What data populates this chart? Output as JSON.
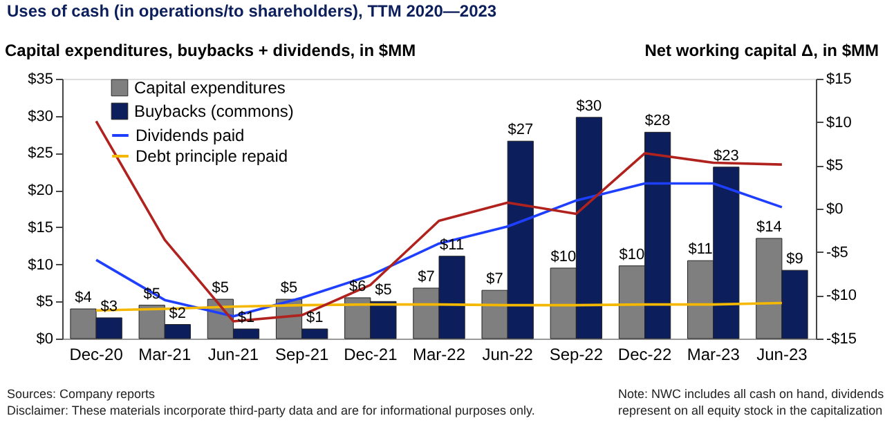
{
  "chart_data": {
    "type": "bar",
    "title": "Uses of cash (in operations/to shareholders), TTM 2020—2023",
    "ylabel": "Capital expenditures, buybacks + dividends, in $MM",
    "y2label": "Net working capital Δ, in $MM",
    "categories": [
      "Dec-20",
      "Mar-21",
      "Jun-21",
      "Sep-21",
      "Dec-21",
      "Mar-22",
      "Jun-22",
      "Sep-22",
      "Dec-22",
      "Mar-23",
      "Jun-23"
    ],
    "series": [
      {
        "name": "Capital expenditures",
        "color": "#7f7f7f",
        "values": [
          4.0,
          4.5,
          5.3,
          5.3,
          5.5,
          6.8,
          6.5,
          9.5,
          9.8,
          10.5,
          13.5
        ],
        "value_labels": [
          "$4",
          "$5",
          "$5",
          "$5",
          "$6",
          "$7",
          "$7",
          "$10",
          "$10",
          "$11",
          "$14"
        ]
      },
      {
        "name": "Buybacks (commons)",
        "color": "#0c1f5c",
        "values": [
          2.8,
          1.9,
          1.3,
          1.3,
          5.0,
          11.1,
          26.6,
          29.8,
          27.8,
          23.1,
          9.2
        ],
        "value_labels": [
          "$3",
          "$2",
          "$1",
          "$1",
          "$5",
          "$11",
          "$27",
          "$30",
          "$28",
          "$23",
          "$9"
        ]
      },
      {
        "name": "Dividends paid",
        "type": "line",
        "color": "#1f3fff",
        "values": [
          10.6,
          5.2,
          3.0,
          5.5,
          8.5,
          12.8,
          15.1,
          18.6,
          20.9,
          20.9,
          17.7
        ]
      },
      {
        "name": "Debt principle repaid",
        "type": "line",
        "color": "#f5b800",
        "values": [
          3.8,
          4.0,
          4.3,
          4.5,
          4.6,
          4.6,
          4.5,
          4.5,
          4.6,
          4.6,
          4.8
        ]
      },
      {
        "type": "line",
        "axis": "y2",
        "color": "#b0221e",
        "values": [
          10.1,
          -3.6,
          -13.0,
          -12.3,
          -8.8,
          -1.4,
          0.7,
          -0.6,
          6.4,
          5.3,
          5.1
        ]
      }
    ],
    "ylim": [
      0,
      35
    ],
    "yticks": [
      {
        "value": 0,
        "label": "$0"
      },
      {
        "value": 5,
        "label": "$5"
      },
      {
        "value": 10,
        "label": "$10"
      },
      {
        "value": 15,
        "label": "$15"
      },
      {
        "value": 20,
        "label": "$20"
      },
      {
        "value": 25,
        "label": "$25"
      },
      {
        "value": 30,
        "label": "$30"
      },
      {
        "value": 35,
        "label": "$35"
      }
    ],
    "y2lim": [
      -15,
      15
    ],
    "y2ticks": [
      {
        "value": -15,
        "label": "-$15"
      },
      {
        "value": -10,
        "label": "-$10"
      },
      {
        "value": -5,
        "label": "-$5"
      },
      {
        "value": 0,
        "label": "$0"
      },
      {
        "value": 5,
        "label": "$5"
      },
      {
        "value": 10,
        "label": "$10"
      },
      {
        "value": 15,
        "label": "$15"
      }
    ],
    "legend": "top left",
    "grid": false,
    "annotations": [
      "Sources: Company reports",
      "Disclaimer: These materials incorporate third-party data and are for informational purposes only.",
      "Note: NWC includes all cash on hand, dividends represent on all equity stock in the capitalization"
    ]
  }
}
